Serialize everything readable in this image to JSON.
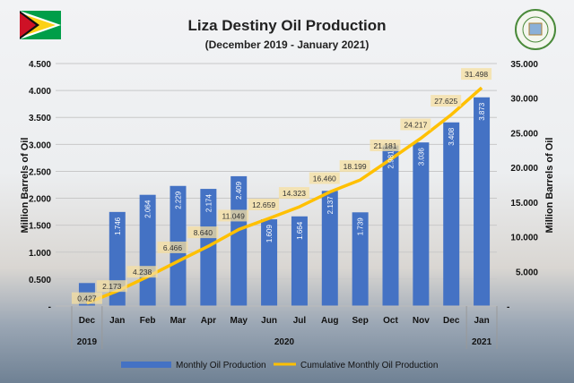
{
  "chart_data": {
    "type": "bar+line",
    "title": "Liza Destiny Oil Production",
    "subtitle": "(December 2019 - January 2021)",
    "categories": [
      "Dec",
      "Jan",
      "Feb",
      "Mar",
      "Apr",
      "May",
      "Jun",
      "Jul",
      "Aug",
      "Sep",
      "Oct",
      "Nov",
      "Dec",
      "Jan"
    ],
    "years": [
      {
        "label": "2019",
        "span": 1
      },
      {
        "label": "2020",
        "span": 12
      },
      {
        "label": "2021",
        "span": 1
      }
    ],
    "series": [
      {
        "name": "Monthly Oil Production",
        "type": "bar",
        "axis": "left",
        "color": "#4472c4",
        "values": [
          0.427,
          1.746,
          2.064,
          2.229,
          2.174,
          2.409,
          1.609,
          1.664,
          2.137,
          1.739,
          2.981,
          3.036,
          3.408,
          3.873
        ],
        "labels": [
          "",
          "1.746",
          "2.064",
          "2.229",
          "2.174",
          "2.409",
          "1.609",
          "1.664",
          "2.137",
          "1.739",
          "2.981",
          "3.036",
          "3.408",
          "3.873"
        ]
      },
      {
        "name": "Cumulative Monthly Oil Production",
        "type": "line",
        "axis": "right",
        "color": "#ffc000",
        "values": [
          427,
          2173,
          4238,
          6466,
          8640,
          11049,
          12659,
          14323,
          16460,
          18199,
          21181,
          24217,
          27625,
          31498
        ],
        "labels": [
          "0.427",
          "2.173",
          "4.238",
          "6.466",
          "8.640",
          "11.049",
          "12.659",
          "14.323",
          "16.460",
          "18.199",
          "21.181",
          "24.217",
          "27.625",
          "31.498"
        ]
      }
    ],
    "ylabel": "Million Barrels of Oil",
    "y2label": "Million Barrels of Oil",
    "ylim": [
      0,
      4.5
    ],
    "y2lim": [
      0,
      35000
    ],
    "yticks": [
      "-",
      "0.500",
      "1.000",
      "1.500",
      "2.000",
      "2.500",
      "3.000",
      "3.500",
      "4.000",
      "4.500"
    ],
    "y2ticks": [
      "-",
      "5.000",
      "10.000",
      "15.000",
      "20.000",
      "25.000",
      "30.000",
      "35.000"
    ],
    "grid": true,
    "legend": "bottom"
  }
}
